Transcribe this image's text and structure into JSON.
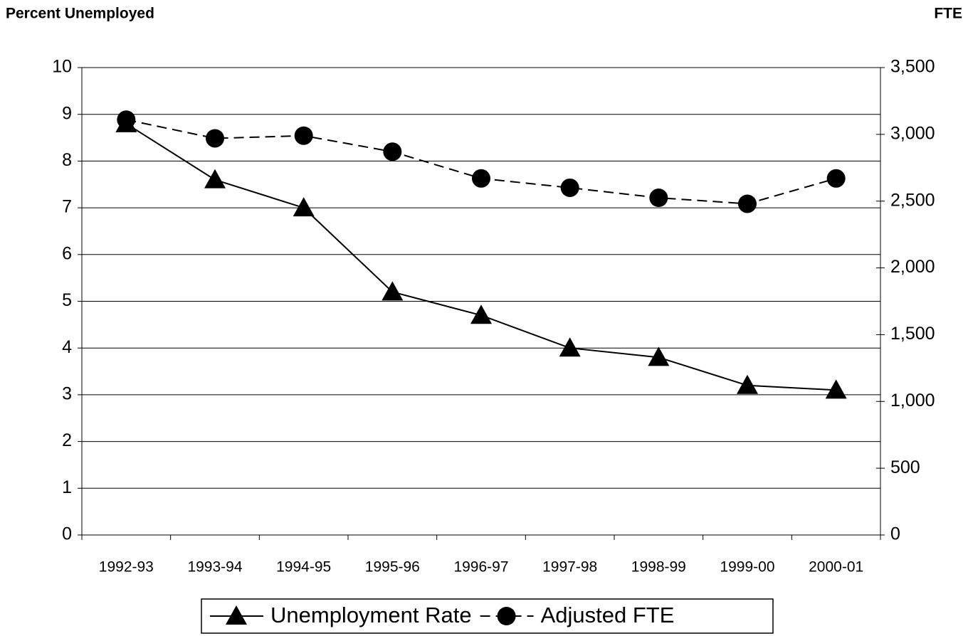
{
  "chart_data": {
    "type": "line",
    "y_label": "Percent Unemployed",
    "y2_label": "FTE",
    "categories": [
      "1992-93",
      "1993-94",
      "1994-95",
      "1995-96",
      "1996-97",
      "1997-98",
      "1998-99",
      "1999-00",
      "2000-01"
    ],
    "series": [
      {
        "name": "Unemployment Rate",
        "color": "#000000",
        "line_style": "solid",
        "marker": "triangle",
        "values": [
          8.8,
          7.6,
          7.0,
          5.2,
          4.7,
          4.0,
          3.8,
          3.2,
          3.1
        ]
      },
      {
        "name": "Adjusted FTE",
        "color": "#000000",
        "line_style": "dashed",
        "marker": "circle",
        "axis": "y2",
        "values": [
          3110,
          2970,
          2990,
          2870,
          2670,
          2600,
          2525,
          2480,
          2670
        ]
      }
    ],
    "ylim": [
      0,
      10
    ],
    "yticks": [
      0,
      1,
      2,
      3,
      4,
      5,
      6,
      7,
      8,
      9,
      10
    ],
    "y2lim": [
      0,
      3500
    ],
    "y2ticks": [
      0,
      500,
      {
        "value": 1000,
        "label": "1,000"
      },
      {
        "value": 1500,
        "label": "1,500"
      },
      {
        "value": 2000,
        "label": "2,000"
      },
      {
        "value": 2500,
        "label": "2,500"
      },
      {
        "value": 3000,
        "label": "3,000"
      },
      {
        "value": 3500,
        "label": "3,500"
      }
    ],
    "grid": true,
    "legend": "bottom"
  }
}
